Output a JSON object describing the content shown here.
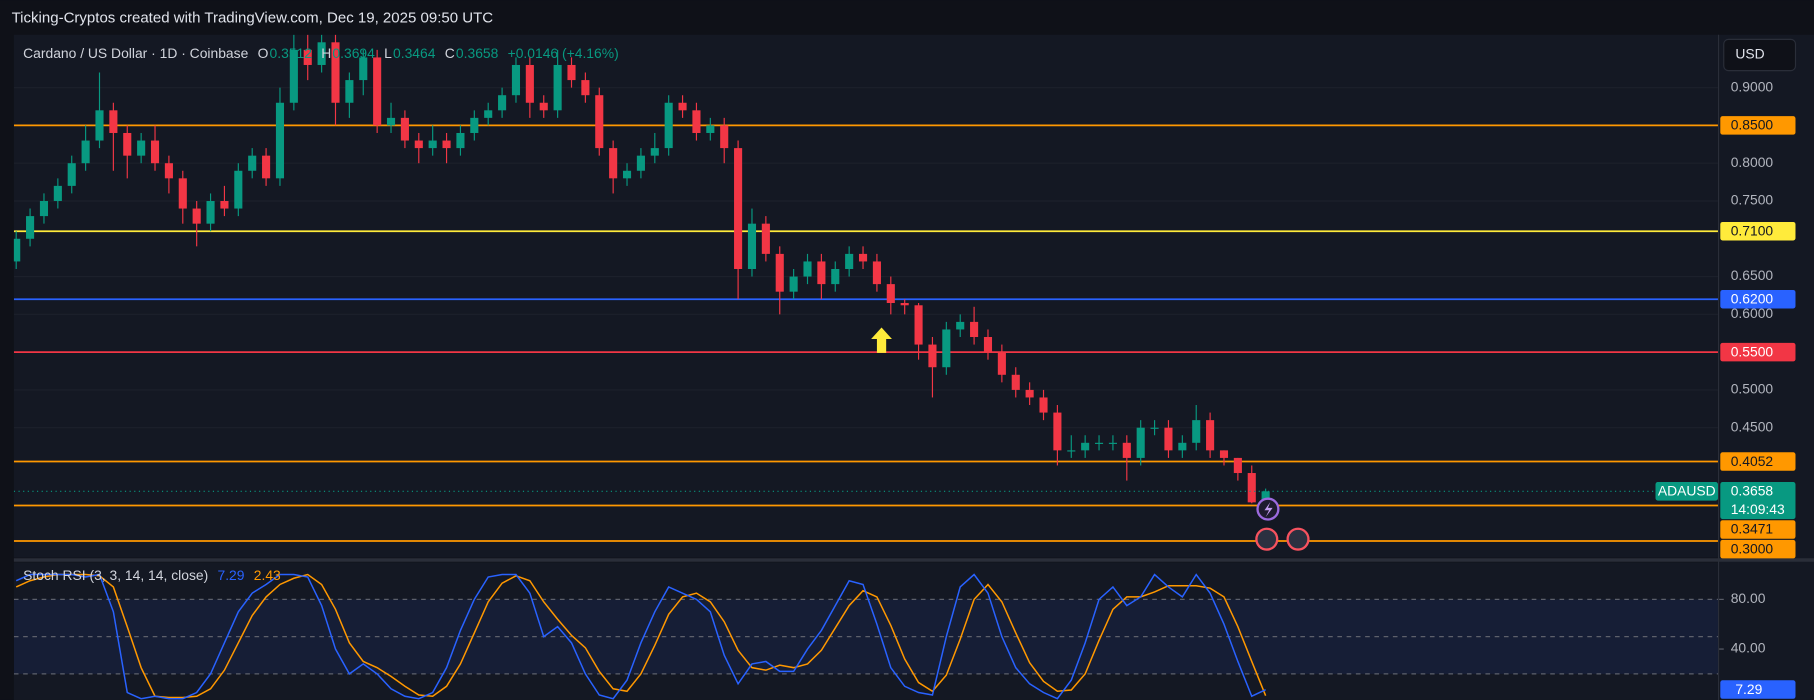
{
  "ui": {
    "header": "Ticking-Cryptos created with TradingView.com, Dec 19, 2025 09:50 UTC",
    "currency": "USD"
  },
  "chart_data": [
    {
      "type": "candlestick",
      "title": "Cardano / US Dollar · 1D · Coinbase",
      "legend": [
        {
          "label": "O",
          "value": "0.3512"
        },
        {
          "label": "H",
          "value": "0.3694"
        },
        {
          "label": "L",
          "value": "0.3464"
        },
        {
          "label": "C",
          "value": "0.3658"
        }
      ],
      "change": "+0.0146 (+4.16%)",
      "colors": {
        "up": "#089981",
        "down": "#f23645"
      },
      "grid": true,
      "ylim": [
        0.278,
        0.97
      ],
      "yticks": [
        {
          "value": 0.9,
          "label": "0.9000"
        },
        {
          "value": 0.8,
          "label": "0.8000"
        },
        {
          "value": 0.75,
          "label": "0.7500"
        },
        {
          "value": 0.65,
          "label": "0.6500"
        },
        {
          "value": 0.6,
          "label": "0.6000"
        },
        {
          "value": 0.5,
          "label": "0.5000"
        },
        {
          "value": 0.45,
          "label": "0.4500"
        }
      ],
      "levels": [
        {
          "value": 0.85,
          "label": "0.8500",
          "color": "#ff9800"
        },
        {
          "value": 0.71,
          "label": "0.7100",
          "color": "#ffeb3b"
        },
        {
          "value": 0.62,
          "label": "0.6200",
          "color": "#2962ff"
        },
        {
          "value": 0.55,
          "label": "0.5500",
          "color": "#f23645"
        },
        {
          "value": 0.4052,
          "label": "0.4052",
          "color": "#ff9800"
        },
        {
          "value": 0.3471,
          "label": "0.3471",
          "color": "#ff9800"
        },
        {
          "value": 0.3,
          "label": "0.3000",
          "color": "#ff9800"
        }
      ],
      "symbol": "ADAUSD",
      "last_price": {
        "value": 0.3658,
        "label": "0.3658"
      },
      "countdown": "14:09:43",
      "candles": [
        [
          0.67,
          0.71,
          0.66,
          0.7
        ],
        [
          0.7,
          0.74,
          0.69,
          0.73
        ],
        [
          0.73,
          0.76,
          0.72,
          0.75
        ],
        [
          0.75,
          0.78,
          0.74,
          0.77
        ],
        [
          0.77,
          0.81,
          0.76,
          0.8
        ],
        [
          0.8,
          0.85,
          0.79,
          0.83
        ],
        [
          0.83,
          0.92,
          0.82,
          0.87
        ],
        [
          0.87,
          0.88,
          0.79,
          0.84
        ],
        [
          0.84,
          0.85,
          0.78,
          0.81
        ],
        [
          0.81,
          0.84,
          0.8,
          0.83
        ],
        [
          0.83,
          0.85,
          0.79,
          0.8
        ],
        [
          0.8,
          0.81,
          0.76,
          0.78
        ],
        [
          0.78,
          0.79,
          0.72,
          0.74
        ],
        [
          0.74,
          0.75,
          0.69,
          0.72
        ],
        [
          0.72,
          0.76,
          0.71,
          0.75
        ],
        [
          0.75,
          0.77,
          0.73,
          0.74
        ],
        [
          0.74,
          0.8,
          0.73,
          0.79
        ],
        [
          0.79,
          0.82,
          0.78,
          0.81
        ],
        [
          0.81,
          0.82,
          0.77,
          0.78
        ],
        [
          0.78,
          0.9,
          0.77,
          0.88
        ],
        [
          0.88,
          0.97,
          0.87,
          0.95
        ],
        [
          0.95,
          0.97,
          0.91,
          0.93
        ],
        [
          0.93,
          0.97,
          0.92,
          0.96
        ],
        [
          0.96,
          0.97,
          0.85,
          0.88
        ],
        [
          0.88,
          0.92,
          0.86,
          0.91
        ],
        [
          0.91,
          0.95,
          0.89,
          0.94
        ],
        [
          0.94,
          0.95,
          0.84,
          0.85
        ],
        [
          0.85,
          0.88,
          0.84,
          0.86
        ],
        [
          0.86,
          0.87,
          0.82,
          0.83
        ],
        [
          0.83,
          0.84,
          0.8,
          0.82
        ],
        [
          0.82,
          0.85,
          0.81,
          0.83
        ],
        [
          0.83,
          0.84,
          0.8,
          0.82
        ],
        [
          0.82,
          0.85,
          0.81,
          0.84
        ],
        [
          0.84,
          0.87,
          0.83,
          0.86
        ],
        [
          0.86,
          0.88,
          0.85,
          0.87
        ],
        [
          0.87,
          0.9,
          0.86,
          0.89
        ],
        [
          0.89,
          0.94,
          0.88,
          0.93
        ],
        [
          0.93,
          0.94,
          0.86,
          0.88
        ],
        [
          0.88,
          0.89,
          0.86,
          0.87
        ],
        [
          0.87,
          0.95,
          0.86,
          0.93
        ],
        [
          0.93,
          0.94,
          0.9,
          0.91
        ],
        [
          0.91,
          0.92,
          0.88,
          0.89
        ],
        [
          0.89,
          0.9,
          0.81,
          0.82
        ],
        [
          0.82,
          0.83,
          0.76,
          0.78
        ],
        [
          0.78,
          0.8,
          0.77,
          0.79
        ],
        [
          0.79,
          0.82,
          0.78,
          0.81
        ],
        [
          0.81,
          0.84,
          0.8,
          0.82
        ],
        [
          0.82,
          0.89,
          0.81,
          0.88
        ],
        [
          0.88,
          0.89,
          0.86,
          0.87
        ],
        [
          0.87,
          0.88,
          0.83,
          0.84
        ],
        [
          0.84,
          0.86,
          0.83,
          0.85
        ],
        [
          0.85,
          0.86,
          0.8,
          0.82
        ],
        [
          0.82,
          0.83,
          0.62,
          0.66
        ],
        [
          0.66,
          0.74,
          0.65,
          0.72
        ],
        [
          0.72,
          0.73,
          0.67,
          0.68
        ],
        [
          0.68,
          0.69,
          0.6,
          0.63
        ],
        [
          0.63,
          0.66,
          0.62,
          0.65
        ],
        [
          0.65,
          0.68,
          0.64,
          0.67
        ],
        [
          0.67,
          0.68,
          0.62,
          0.64
        ],
        [
          0.64,
          0.67,
          0.63,
          0.66
        ],
        [
          0.66,
          0.69,
          0.65,
          0.68
        ],
        [
          0.68,
          0.69,
          0.66,
          0.67
        ],
        [
          0.67,
          0.68,
          0.63,
          0.64
        ],
        [
          0.64,
          0.65,
          0.6,
          0.615
        ],
        [
          0.615,
          0.62,
          0.6,
          0.612
        ],
        [
          0.612,
          0.615,
          0.54,
          0.56
        ],
        [
          0.56,
          0.57,
          0.49,
          0.53
        ],
        [
          0.53,
          0.59,
          0.52,
          0.58
        ],
        [
          0.58,
          0.6,
          0.57,
          0.59
        ],
        [
          0.59,
          0.61,
          0.56,
          0.57
        ],
        [
          0.57,
          0.58,
          0.54,
          0.55
        ],
        [
          0.55,
          0.56,
          0.51,
          0.52
        ],
        [
          0.52,
          0.53,
          0.49,
          0.5
        ],
        [
          0.5,
          0.51,
          0.48,
          0.49
        ],
        [
          0.49,
          0.5,
          0.46,
          0.47
        ],
        [
          0.47,
          0.48,
          0.4,
          0.42
        ],
        [
          0.42,
          0.44,
          0.41,
          0.42
        ],
        [
          0.42,
          0.44,
          0.41,
          0.43
        ],
        [
          0.43,
          0.44,
          0.42,
          0.43
        ],
        [
          0.43,
          0.44,
          0.42,
          0.43
        ],
        [
          0.43,
          0.44,
          0.38,
          0.41
        ],
        [
          0.41,
          0.46,
          0.4,
          0.45
        ],
        [
          0.45,
          0.46,
          0.44,
          0.45
        ],
        [
          0.45,
          0.46,
          0.41,
          0.42
        ],
        [
          0.42,
          0.44,
          0.41,
          0.43
        ],
        [
          0.43,
          0.48,
          0.42,
          0.46
        ],
        [
          0.46,
          0.47,
          0.41,
          0.42
        ],
        [
          0.42,
          0.42,
          0.4,
          0.41
        ],
        [
          0.41,
          0.41,
          0.38,
          0.39
        ],
        [
          0.39,
          0.4,
          0.35,
          0.3512
        ],
        [
          0.3512,
          0.3694,
          0.3464,
          0.3658
        ]
      ]
    },
    {
      "type": "line",
      "title": "Stoch RSI (3, 3, 14, 14, close)",
      "ylim": [
        -1,
        108
      ],
      "yticks": [
        {
          "value": 80,
          "label": "80.00"
        },
        {
          "value": 40,
          "label": "40.00"
        }
      ],
      "bands": [
        80,
        50,
        20
      ],
      "series": [
        {
          "color": "#2962ff",
          "last_label": "7.29",
          "values": [
            95,
            100,
            100,
            100,
            100,
            98,
            100,
            70,
            5,
            0,
            2,
            0,
            0,
            5,
            20,
            45,
            70,
            85,
            92,
            100,
            100,
            98,
            75,
            40,
            20,
            28,
            20,
            8,
            2,
            0,
            5,
            25,
            55,
            80,
            98,
            100,
            100,
            85,
            50,
            58,
            45,
            20,
            3,
            0,
            15,
            45,
            70,
            90,
            85,
            80,
            70,
            35,
            12,
            28,
            30,
            22,
            22,
            40,
            55,
            75,
            95,
            92,
            60,
            25,
            10,
            5,
            3,
            50,
            90,
            100,
            85,
            50,
            25,
            12,
            5,
            0,
            15,
            45,
            80,
            90,
            75,
            82,
            100,
            90,
            82,
            100,
            85,
            60,
            30,
            2,
            7.29
          ]
        },
        {
          "color": "#ff9800",
          "last_label": "2.43",
          "values": [
            90,
            95,
            98,
            100,
            100,
            100,
            99,
            90,
            58,
            25,
            2,
            1,
            1,
            2,
            8,
            23,
            45,
            67,
            82,
            92,
            97,
            100,
            92,
            72,
            45,
            30,
            25,
            18,
            10,
            3,
            2,
            10,
            28,
            53,
            78,
            93,
            99,
            95,
            78,
            64,
            51,
            41,
            22,
            8,
            6,
            20,
            43,
            68,
            82,
            85,
            78,
            62,
            39,
            25,
            23,
            27,
            25,
            28,
            39,
            57,
            75,
            87,
            82,
            59,
            32,
            13,
            6,
            19,
            48,
            80,
            92,
            78,
            53,
            29,
            14,
            6,
            7,
            20,
            47,
            72,
            82,
            82,
            86,
            91,
            91,
            91,
            89,
            82,
            58,
            30,
            2.43
          ]
        }
      ]
    }
  ]
}
